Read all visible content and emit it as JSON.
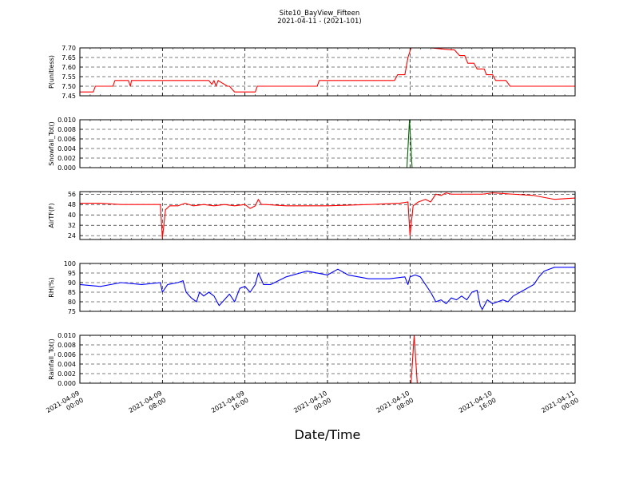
{
  "figure": {
    "title_line1": "Site10_BayView_Fifteen",
    "title_line2": "2021-04-11 - (2021-101)",
    "xlabel": "Date/Time"
  },
  "x_ticks": [
    {
      "line1": "2021-04-09",
      "line2": "00:00"
    },
    {
      "line1": "2021-04-09",
      "line2": "08:00"
    },
    {
      "line1": "2021-04-09",
      "line2": "16:00"
    },
    {
      "line1": "2021-04-10",
      "line2": "00:00"
    },
    {
      "line1": "2021-04-10",
      "line2": "08:00"
    },
    {
      "line1": "2021-04-10",
      "line2": "16:00"
    },
    {
      "line1": "2021-04-11",
      "line2": "00:00"
    }
  ],
  "chart_data": [
    {
      "type": "line",
      "ylabel": "P(unitless)",
      "ylim": [
        7.45,
        7.7
      ],
      "yticks": [
        "7.45",
        "7.50",
        "7.55",
        "7.60",
        "7.65",
        "7.70"
      ],
      "xlim_hours": [
        0,
        48
      ],
      "grid": true,
      "series": [
        {
          "color": "#ff0000",
          "x": [
            0,
            1.3,
            1.5,
            3.2,
            3.4,
            4.7,
            4.9,
            5.0,
            6.0,
            12.5,
            12.8,
            13.0,
            13.2,
            13.4,
            14.3,
            14.5,
            15.0,
            17.0,
            17.2,
            20.0,
            23.0,
            23.2,
            26.0,
            29.0,
            30.5,
            30.8,
            31.5,
            31.8,
            32.1,
            34.0,
            36.0,
            36.3,
            36.8,
            37.3,
            37.6,
            38.2,
            38.5,
            39.2,
            39.4,
            40.0,
            40.3,
            41.3,
            41.7,
            48.0
          ],
          "y": [
            7.47,
            7.47,
            7.5,
            7.5,
            7.53,
            7.53,
            7.5,
            7.53,
            7.53,
            7.53,
            7.51,
            7.53,
            7.5,
            7.53,
            7.5,
            7.5,
            7.47,
            7.47,
            7.5,
            7.5,
            7.5,
            7.53,
            7.53,
            7.53,
            7.53,
            7.56,
            7.56,
            7.65,
            7.7,
            7.7,
            7.69,
            7.69,
            7.66,
            7.66,
            7.62,
            7.62,
            7.59,
            7.59,
            7.56,
            7.56,
            7.53,
            7.53,
            7.5,
            7.5
          ]
        }
      ]
    },
    {
      "type": "line",
      "ylabel": "Snowfall_Tot()",
      "ylim": [
        0,
        0.01
      ],
      "yticks": [
        "0.000",
        "0.002",
        "0.004",
        "0.006",
        "0.008",
        "0.010"
      ],
      "xlim_hours": [
        0,
        48
      ],
      "grid": true,
      "series": [
        {
          "color": "#006400",
          "x": [
            0,
            31.7,
            31.95,
            32.2,
            48.0
          ],
          "y": [
            0,
            0,
            0.01,
            0,
            0
          ]
        }
      ]
    },
    {
      "type": "line",
      "ylabel": "AirTF(F)",
      "ylim": [
        21,
        58
      ],
      "yticks": [
        "24",
        "32",
        "40",
        "48",
        "56"
      ],
      "xlim_hours": [
        0,
        48
      ],
      "grid": true,
      "series": [
        {
          "color": "#ff0000",
          "x": [
            0,
            2,
            4,
            6,
            7.8,
            8.0,
            8.3,
            8.7,
            9.5,
            10.2,
            11.0,
            12.0,
            13.0,
            14.0,
            15.0,
            16.0,
            16.5,
            17.0,
            17.3,
            17.6,
            18.0,
            20.0,
            24.0,
            28.0,
            31.0,
            31.8,
            32.0,
            32.3,
            32.8,
            33.5,
            34.0,
            34.5,
            35.0,
            35.5,
            36.0,
            38.0,
            39.0,
            40.0,
            42.0,
            44.0,
            46.0,
            48.0
          ],
          "y": [
            49,
            49,
            48,
            48,
            48,
            22,
            44,
            47,
            47,
            49,
            47,
            48,
            47,
            48,
            47,
            48,
            45,
            47,
            52,
            48,
            48,
            47,
            47,
            48,
            49,
            50,
            24,
            47,
            50,
            52,
            50,
            56,
            55,
            57,
            56,
            56,
            56,
            57,
            56,
            55,
            52,
            53
          ]
        }
      ]
    },
    {
      "type": "line",
      "ylabel": "RH(%)",
      "ylim": [
        75,
        100
      ],
      "yticks": [
        "75",
        "80",
        "85",
        "90",
        "95",
        "100"
      ],
      "xlim_hours": [
        0,
        48
      ],
      "grid": true,
      "series": [
        {
          "color": "#0000ff",
          "x": [
            0,
            2,
            4,
            6,
            7.8,
            8.0,
            8.5,
            9.5,
            10.0,
            10.3,
            10.8,
            11.3,
            11.6,
            12.0,
            12.5,
            13.0,
            13.5,
            14.0,
            14.5,
            15.0,
            15.5,
            16.0,
            16.5,
            17.0,
            17.3,
            17.8,
            18.5,
            20.0,
            22.0,
            24.0,
            25.0,
            26.0,
            28.0,
            30.0,
            31.5,
            31.8,
            32.0,
            32.5,
            33.0,
            33.5,
            34.0,
            34.5,
            35.0,
            35.5,
            36.0,
            36.5,
            37.0,
            37.5,
            38.0,
            38.5,
            38.8,
            39.0,
            39.5,
            40.0,
            40.5,
            41.0,
            41.5,
            42.0,
            43.0,
            44.0,
            44.5,
            45.0,
            46.0,
            47.0,
            48.0
          ],
          "y": [
            89,
            88,
            90,
            89,
            90,
            85,
            89,
            90,
            91,
            85,
            82,
            80,
            85,
            83,
            85,
            83,
            78,
            81,
            84,
            80,
            87,
            88,
            85,
            89,
            95,
            89,
            89,
            93,
            96,
            94,
            97,
            94,
            92,
            92,
            93,
            89,
            93,
            94,
            93,
            89,
            85,
            80,
            81,
            79,
            82,
            81,
            83,
            81,
            85,
            86,
            78,
            76,
            81,
            79,
            80,
            81,
            80,
            83,
            86,
            89,
            93,
            96,
            98,
            98,
            98
          ]
        }
      ]
    },
    {
      "type": "line",
      "ylabel": "Rainfall_Tot()",
      "ylim": [
        0,
        0.01
      ],
      "yticks": [
        "0.000",
        "0.002",
        "0.004",
        "0.006",
        "0.008",
        "0.010"
      ],
      "xlim_hours": [
        0,
        48
      ],
      "grid": true,
      "series": [
        {
          "color": "#ff0000",
          "x": [
            0,
            32.1,
            32.4,
            32.7,
            48.0
          ],
          "y": [
            0,
            0,
            0.01,
            0,
            0
          ]
        }
      ]
    }
  ]
}
